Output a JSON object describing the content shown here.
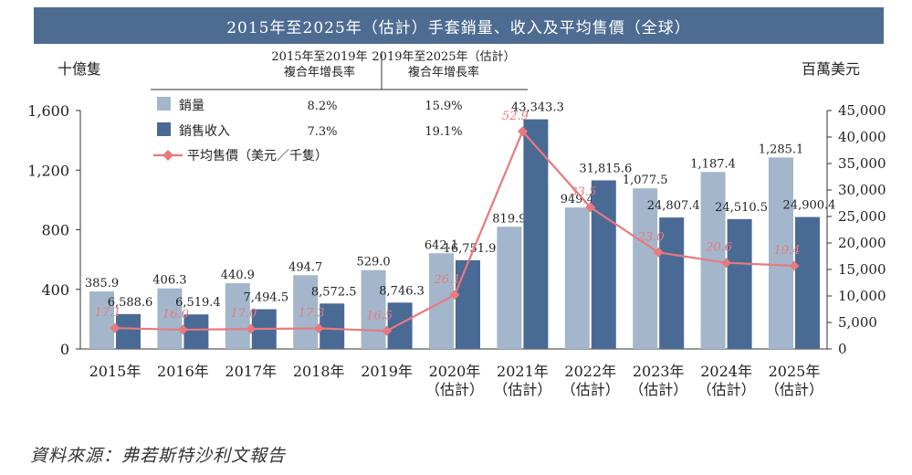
{
  "title": "2015年至2025年（估計）手套銷量、收入及平均售價（全球）",
  "source": "資料來源：弗若斯特沙利文報告",
  "colors": {
    "volume": "#a3b6cb",
    "revenue": "#4a6a96",
    "price": "#e9797e",
    "title_bg": "#4e6c92"
  },
  "chart_data": {
    "type": "bar",
    "categories": [
      [
        "2015年"
      ],
      [
        "2016年"
      ],
      [
        "2017年"
      ],
      [
        "2018年"
      ],
      [
        "2019年"
      ],
      [
        "2020年",
        "（估計）"
      ],
      [
        "2021年",
        "（估計）"
      ],
      [
        "2022年",
        "（估計）"
      ],
      [
        "2023年",
        "（估計）"
      ],
      [
        "2024年",
        "（估計）"
      ],
      [
        "2025年",
        "（估計）"
      ]
    ],
    "left_axis": {
      "unit": "十億隻",
      "range": [
        0,
        1600
      ],
      "ticks": [
        0,
        400,
        800,
        1200,
        1600
      ],
      "tick_labels": [
        "0",
        "400",
        "800",
        "1,200",
        "1,600"
      ]
    },
    "right_axis": {
      "unit": "百萬美元",
      "range": [
        0,
        45000
      ],
      "ticks": [
        0,
        5000,
        10000,
        15000,
        20000,
        25000,
        30000,
        35000,
        40000,
        45000
      ],
      "tick_labels": [
        "0",
        "5,000",
        "10,000",
        "15,000",
        "20,000",
        "25,000",
        "30,000",
        "35,000",
        "40,000",
        "45,000"
      ]
    },
    "series": [
      {
        "name": "銷量",
        "axis": "left",
        "kind": "bar",
        "values": [
          385.9,
          406.3,
          440.9,
          494.7,
          529.0,
          642.1,
          819.9,
          949.4,
          1077.5,
          1187.4,
          1285.1
        ],
        "labels": [
          "385.9",
          "406.3",
          "440.9",
          "494.7",
          "529.0",
          "642.1",
          "819.9",
          "949.4",
          "1,077.5",
          "1,187.4",
          "1,285.1"
        ]
      },
      {
        "name": "銷售收入",
        "axis": "right",
        "kind": "bar",
        "values": [
          6588.6,
          6519.4,
          7494.5,
          8572.5,
          8746.3,
          16751.9,
          43343.3,
          31815.6,
          24807.4,
          24510.5,
          24900.4
        ],
        "labels": [
          "6,588.6",
          "6,519.4",
          "7,494.5",
          "8,572.5",
          "8,746.3",
          "16,751.9",
          "43,343.3",
          "31,815.6",
          "24,807.4",
          "24,510.5",
          "24,900.4"
        ]
      },
      {
        "name": "平均售價（美元／千隻）",
        "axis": "left-scaled",
        "kind": "line",
        "values": [
          17.1,
          16.0,
          17.0,
          17.3,
          16.5,
          26.1,
          52.9,
          33.5,
          23.0,
          20.6,
          19.4
        ],
        "labels": [
          "17.1",
          "16.0",
          "17.0",
          "17.3",
          "16.5",
          "26.1",
          "52.9",
          "33.5",
          "23.0",
          "20.6",
          "19.4"
        ],
        "marker_left_axis_values": [
          140,
          129,
          134,
          138,
          121,
          363,
          1460,
          950,
          648,
          578,
          558
        ]
      }
    ],
    "cagr_table": {
      "headers": [
        [
          "2015年至2019年",
          "複合年增長率"
        ],
        [
          "2019年至2025年（估計）",
          "複合年增長率"
        ]
      ],
      "rows": [
        {
          "name": "銷量",
          "values": [
            "8.2%",
            "15.9%"
          ]
        },
        {
          "name": "銷售收入",
          "values": [
            "7.3%",
            "19.1%"
          ]
        }
      ],
      "line_legend": "平均售價（美元／千隻）"
    }
  }
}
